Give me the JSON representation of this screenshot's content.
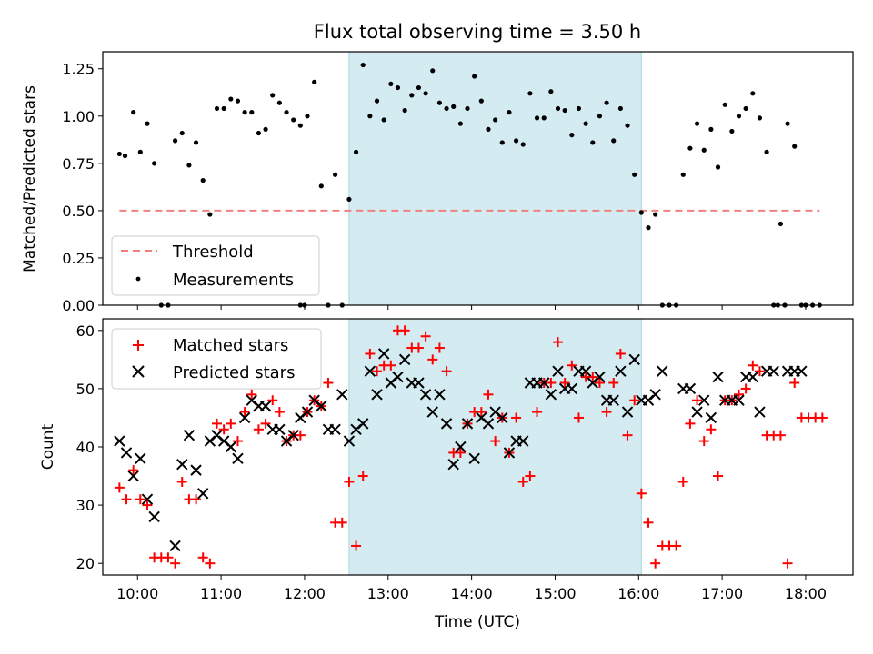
{
  "chart_data": [
    {
      "type": "scatter",
      "title": "Flux total observing time = 3.50 h",
      "xlabel": "",
      "ylabel": "Matched/Predicted stars",
      "ylim": [
        0,
        1.34
      ],
      "xlim": [
        "09:35",
        "18:34"
      ],
      "y_ticks": [
        "0.00",
        "0.25",
        "0.50",
        "0.75",
        "1.00",
        "1.25"
      ],
      "shaded_interval": {
        "start": "12:32",
        "end": "16:02",
        "color": "#d3ebf1"
      },
      "legend_position": "lower-left",
      "series": [
        {
          "name": "Threshold",
          "style": "dashed-line",
          "color": "#f08080",
          "x": [
            "09:47",
            "18:10"
          ],
          "y": [
            0.5,
            0.5
          ]
        },
        {
          "name": "Measurements",
          "style": "dots",
          "color": "#000000",
          "x": [
            "09:47",
            "09:51",
            "09:57",
            "10:02",
            "10:07",
            "10:12",
            "10:27",
            "10:32",
            "10:37",
            "10:42",
            "10:47",
            "10:52",
            "10:57",
            "11:02",
            "11:07",
            "11:12",
            "11:17",
            "11:22",
            "11:27",
            "11:32",
            "11:37",
            "11:42",
            "11:47",
            "11:52",
            "11:57",
            "12:02",
            "12:07",
            "12:12",
            "12:17",
            "12:22",
            "12:32",
            "12:37",
            "12:42",
            "12:47",
            "12:52",
            "12:57",
            "13:02",
            "13:07",
            "13:12",
            "13:17",
            "13:22",
            "13:27",
            "13:32",
            "13:37",
            "13:42",
            "13:47",
            "13:52",
            "13:57",
            "14:02",
            "14:07",
            "14:12",
            "14:17",
            "14:22",
            "14:27",
            "14:32",
            "14:37",
            "14:42",
            "14:47",
            "14:52",
            "14:57",
            "15:02",
            "15:07",
            "15:12",
            "15:17",
            "15:22",
            "15:27",
            "15:32",
            "15:37",
            "15:42",
            "15:47",
            "15:52",
            "15:57",
            "16:02",
            "16:07",
            "16:12",
            "16:17",
            "16:32",
            "16:37",
            "16:42",
            "16:47",
            "16:52",
            "16:57",
            "17:02",
            "17:07",
            "17:12",
            "17:17",
            "17:22",
            "17:27",
            "17:32",
            "17:37",
            "17:42",
            "17:47",
            "17:52",
            "17:57",
            "10:17",
            "10:22",
            "11:57",
            "12:00",
            "12:27",
            "16:22",
            "16:27",
            "17:40",
            "17:45",
            "18:00",
            "18:05",
            "18:10"
          ],
          "y": [
            0.8,
            0.79,
            1.02,
            0.81,
            0.96,
            0.75,
            0.87,
            0.91,
            0.74,
            0.86,
            0.66,
            0.48,
            1.04,
            1.04,
            1.09,
            1.08,
            1.02,
            1.02,
            0.91,
            0.93,
            1.11,
            1.07,
            1.02,
            0.98,
            0.95,
            1.0,
            1.18,
            0.63,
            0.0,
            0.69,
            0.56,
            0.81,
            1.27,
            1.0,
            1.08,
            0.98,
            1.17,
            1.15,
            1.03,
            1.11,
            1.15,
            1.12,
            1.24,
            1.07,
            1.04,
            1.05,
            0.96,
            1.04,
            1.21,
            1.08,
            0.93,
            0.98,
            0.86,
            1.02,
            0.87,
            0.85,
            1.12,
            0.99,
            0.99,
            1.13,
            1.04,
            1.03,
            0.9,
            1.04,
            0.96,
            0.86,
            1.0,
            1.07,
            0.87,
            1.04,
            0.95,
            0.69,
            0.49,
            0.41,
            0.48,
            0.0,
            0.69,
            0.83,
            0.96,
            0.82,
            0.93,
            0.73,
            1.06,
            0.92,
            1.0,
            1.04,
            1.12,
            0.99,
            0.81,
            0.0,
            0.43,
            0.96,
            0.84,
            0.0,
            0.0,
            0.0,
            0.0,
            0.0,
            0.0,
            0.0,
            0.0,
            0.0,
            0.0,
            0.0,
            0.0,
            0.0
          ]
        }
      ]
    },
    {
      "type": "scatter",
      "title": "",
      "xlabel": "Time (UTC)",
      "ylabel": "Count",
      "ylim": [
        18,
        62
      ],
      "xlim": [
        "09:35",
        "18:34"
      ],
      "x_ticks": [
        "10:00",
        "11:00",
        "12:00",
        "13:00",
        "14:00",
        "15:00",
        "16:00",
        "17:00",
        "18:00"
      ],
      "y_ticks": [
        "20",
        "30",
        "40",
        "50",
        "60"
      ],
      "shaded_interval": {
        "start": "12:32",
        "end": "16:02",
        "color": "#d3ebf1"
      },
      "legend_position": "upper-left",
      "series": [
        {
          "name": "Matched stars",
          "marker": "+",
          "color": "#ff0000",
          "x": [
            "09:47",
            "09:52",
            "09:57",
            "10:02",
            "10:07",
            "10:12",
            "10:17",
            "10:22",
            "10:27",
            "10:32",
            "10:37",
            "10:42",
            "10:47",
            "10:52",
            "10:57",
            "11:02",
            "11:07",
            "11:12",
            "11:17",
            "11:22",
            "11:27",
            "11:32",
            "11:37",
            "11:42",
            "11:47",
            "11:52",
            "11:57",
            "12:02",
            "12:07",
            "12:12",
            "12:17",
            "12:22",
            "12:27",
            "12:32",
            "12:37",
            "12:42",
            "12:47",
            "12:52",
            "12:57",
            "13:02",
            "13:07",
            "13:12",
            "13:17",
            "13:22",
            "13:27",
            "13:32",
            "13:37",
            "13:42",
            "13:47",
            "13:52",
            "13:57",
            "14:02",
            "14:07",
            "14:12",
            "14:17",
            "14:22",
            "14:27",
            "14:32",
            "14:37",
            "14:42",
            "14:47",
            "14:52",
            "14:57",
            "15:02",
            "15:07",
            "15:12",
            "15:17",
            "15:22",
            "15:27",
            "15:32",
            "15:37",
            "15:42",
            "15:47",
            "15:52",
            "15:57",
            "16:02",
            "16:07",
            "16:12",
            "16:17",
            "16:22",
            "16:27",
            "16:32",
            "16:37",
            "16:42",
            "16:47",
            "16:52",
            "16:57",
            "17:02",
            "17:07",
            "17:12",
            "17:17",
            "17:22",
            "17:27",
            "17:32",
            "17:37",
            "17:42",
            "17:47",
            "17:52",
            "17:57",
            "18:02",
            "18:07",
            "18:12"
          ],
          "y": [
            33,
            31,
            36,
            31,
            30,
            21,
            21,
            21,
            20,
            34,
            31,
            31,
            21,
            20,
            44,
            43,
            44,
            41,
            46,
            49,
            43,
            44,
            48,
            46,
            41,
            42,
            42,
            46,
            48,
            47,
            51,
            27,
            27,
            34,
            23,
            35,
            56,
            53,
            54,
            54,
            60,
            60,
            57,
            57,
            59,
            55,
            57,
            53,
            39,
            39,
            44,
            46,
            46,
            49,
            41,
            45,
            39,
            45,
            34,
            35,
            46,
            51,
            51,
            58,
            51,
            54,
            45,
            52,
            52,
            51,
            46,
            51,
            56,
            42,
            48,
            32,
            27,
            20,
            23,
            23,
            23,
            34,
            44,
            48,
            41,
            43,
            35,
            48,
            48,
            49,
            50,
            54,
            53,
            42,
            42,
            42,
            20,
            51,
            45,
            45,
            45,
            45
          ]
        },
        {
          "name": "Predicted stars",
          "marker": "x",
          "color": "#000000",
          "x": [
            "09:47",
            "09:52",
            "09:57",
            "10:02",
            "10:07",
            "10:12",
            "10:27",
            "10:32",
            "10:37",
            "10:42",
            "10:47",
            "10:52",
            "10:57",
            "11:02",
            "11:07",
            "11:12",
            "11:17",
            "11:22",
            "11:27",
            "11:32",
            "11:37",
            "11:42",
            "11:47",
            "11:52",
            "11:57",
            "12:02",
            "12:07",
            "12:12",
            "12:17",
            "12:22",
            "12:27",
            "12:32",
            "12:37",
            "12:42",
            "12:47",
            "12:52",
            "12:57",
            "13:02",
            "13:07",
            "13:12",
            "13:17",
            "13:22",
            "13:27",
            "13:32",
            "13:37",
            "13:42",
            "13:47",
            "13:52",
            "13:57",
            "14:02",
            "14:07",
            "14:12",
            "14:17",
            "14:22",
            "14:27",
            "14:32",
            "14:37",
            "14:42",
            "14:47",
            "14:52",
            "14:57",
            "15:02",
            "15:07",
            "15:12",
            "15:17",
            "15:22",
            "15:27",
            "15:32",
            "15:37",
            "15:42",
            "15:47",
            "15:52",
            "15:57",
            "16:02",
            "16:07",
            "16:12",
            "16:17",
            "16:32",
            "16:37",
            "16:42",
            "16:47",
            "16:52",
            "16:57",
            "17:02",
            "17:07",
            "17:12",
            "17:17",
            "17:22",
            "17:27",
            "17:32",
            "17:37",
            "17:47",
            "17:52",
            "17:57"
          ],
          "y": [
            41,
            39,
            35,
            38,
            31,
            28,
            23,
            37,
            42,
            36,
            32,
            41,
            42,
            41,
            40,
            38,
            45,
            48,
            47,
            47,
            43,
            43,
            41,
            42,
            45,
            46,
            48,
            47,
            43,
            43,
            49,
            41,
            43,
            44,
            53,
            49,
            56,
            51,
            52,
            55,
            51,
            51,
            49,
            46,
            49,
            44,
            37,
            40,
            44,
            38,
            45,
            44,
            46,
            45,
            39,
            41,
            41,
            51,
            51,
            51,
            49,
            53,
            50,
            50,
            53,
            53,
            51,
            52,
            48,
            48,
            53,
            46,
            55,
            48,
            48,
            49,
            53,
            50,
            50,
            46,
            48,
            45,
            52,
            48,
            48,
            48,
            52,
            52,
            46,
            53,
            53,
            53,
            53,
            53
          ]
        }
      ]
    }
  ]
}
